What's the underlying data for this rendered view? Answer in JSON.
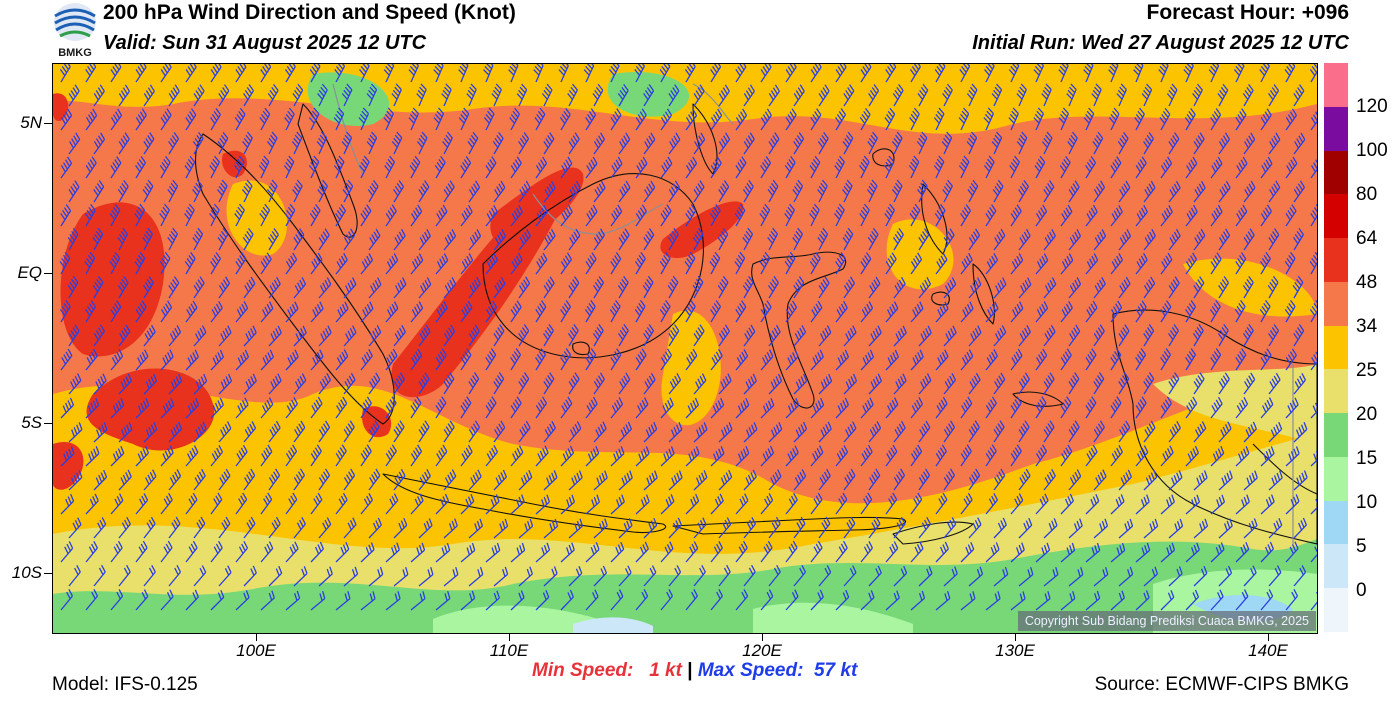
{
  "header": {
    "logo_text": "BMKG",
    "title": "200 hPa Wind Direction and Speed (Knot)",
    "valid": "Valid: Sun 31 August 2025 12 UTC",
    "forecast_hour": "Forecast Hour: +096",
    "initial_run": "Initial Run: Wed 27 August 2025 12 UTC"
  },
  "map": {
    "lat_labels": [
      "5N",
      "EQ",
      "5S",
      "10S"
    ],
    "lon_labels": [
      "100E",
      "110E",
      "120E",
      "130E",
      "140E"
    ],
    "copyright": "Copyright Sub Bidang Prediksi Cuaca BMKG, 2025",
    "barb_color": "#2b3fe0"
  },
  "colorbar": {
    "labels": [
      "120",
      "100",
      "80",
      "64",
      "48",
      "34",
      "25",
      "20",
      "15",
      "10",
      "5",
      "0"
    ],
    "colors": [
      "#fa6e8c",
      "#7a0da0",
      "#a00000",
      "#d40000",
      "#e8321e",
      "#f5784a",
      "#fcc400",
      "#e8e06a",
      "#78d878",
      "#aaf5a0",
      "#9ed8f5",
      "#cce8f8",
      "#eef6fc"
    ]
  },
  "stats": {
    "min_label": "Min Speed:",
    "min_value": "1 kt",
    "separator": "|",
    "max_label": "Max Speed:",
    "max_value": "57 kt",
    "min_color": "#e8323a",
    "max_color": "#1e3ce8"
  },
  "footer": {
    "model": "Model: IFS-0.125",
    "source": "Source: ECMWF-CIPS BMKG"
  }
}
